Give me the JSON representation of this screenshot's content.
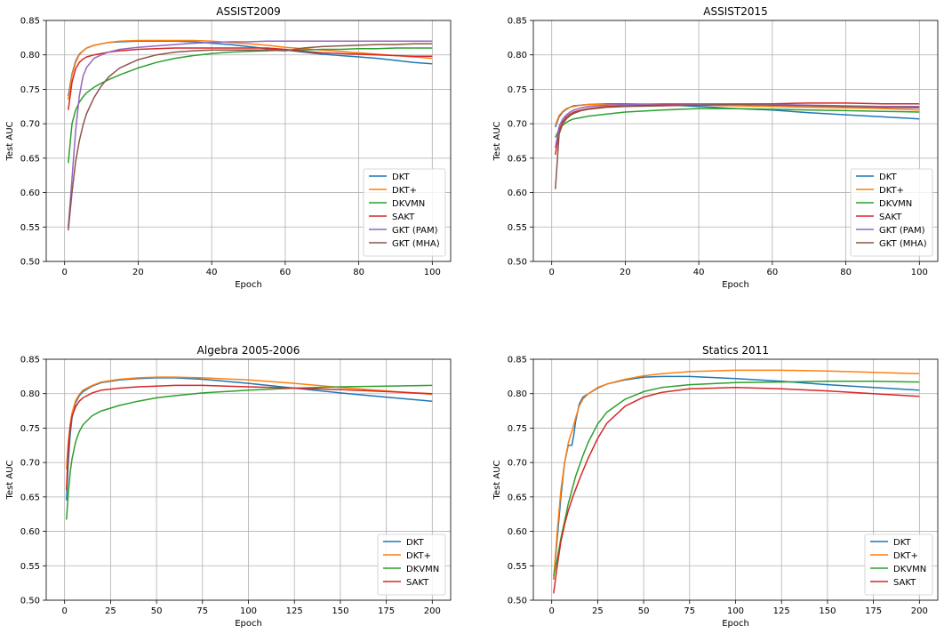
{
  "chart_data": [
    {
      "type": "line",
      "title": "ASSIST2009",
      "xlabel": "Epoch",
      "ylabel": "Test AUC",
      "xlim": [
        -5,
        105
      ],
      "ylim": [
        0.5,
        0.85
      ],
      "xticks": [
        0,
        20,
        40,
        60,
        80,
        100
      ],
      "yticks": [
        0.5,
        0.55,
        0.6,
        0.65,
        0.7,
        0.75,
        0.8,
        0.85
      ],
      "grid": true,
      "legend_position": "lower-right",
      "x": [
        1,
        2,
        3,
        4,
        5,
        6,
        8,
        10,
        12,
        15,
        20,
        25,
        30,
        35,
        40,
        45,
        50,
        55,
        60,
        65,
        70,
        75,
        80,
        85,
        90,
        95,
        100
      ],
      "series": [
        {
          "name": "DKT",
          "color": "#1f77b4",
          "values": [
            0.74,
            0.772,
            0.791,
            0.801,
            0.806,
            0.81,
            0.814,
            0.816,
            0.818,
            0.819,
            0.82,
            0.82,
            0.82,
            0.819,
            0.817,
            0.815,
            0.812,
            0.809,
            0.807,
            0.804,
            0.801,
            0.799,
            0.797,
            0.795,
            0.792,
            0.789,
            0.787
          ]
        },
        {
          "name": "DKT+",
          "color": "#ff7f0e",
          "values": [
            0.735,
            0.77,
            0.789,
            0.8,
            0.806,
            0.81,
            0.814,
            0.816,
            0.818,
            0.82,
            0.821,
            0.821,
            0.821,
            0.821,
            0.82,
            0.818,
            0.816,
            0.814,
            0.811,
            0.809,
            0.807,
            0.805,
            0.803,
            0.801,
            0.799,
            0.797,
            0.795
          ]
        },
        {
          "name": "DKVMN",
          "color": "#2ca02c",
          "values": [
            0.643,
            0.7,
            0.72,
            0.731,
            0.739,
            0.745,
            0.753,
            0.759,
            0.764,
            0.771,
            0.781,
            0.789,
            0.795,
            0.799,
            0.802,
            0.804,
            0.805,
            0.806,
            0.807,
            0.807,
            0.808,
            0.808,
            0.809,
            0.809,
            0.81,
            0.81,
            0.81
          ]
        },
        {
          "name": "SAKT",
          "color": "#d62728",
          "values": [
            0.72,
            0.76,
            0.78,
            0.789,
            0.794,
            0.797,
            0.8,
            0.802,
            0.804,
            0.806,
            0.808,
            0.809,
            0.81,
            0.81,
            0.81,
            0.81,
            0.81,
            0.81,
            0.808,
            0.805,
            0.803,
            0.802,
            0.801,
            0.8,
            0.799,
            0.798,
            0.798
          ]
        },
        {
          "name": "GKT (PAM)",
          "color": "#9467bd",
          "values": [
            0.55,
            0.62,
            0.69,
            0.74,
            0.769,
            0.782,
            0.795,
            0.8,
            0.804,
            0.808,
            0.811,
            0.813,
            0.815,
            0.817,
            0.818,
            0.819,
            0.819,
            0.82,
            0.82,
            0.82,
            0.82,
            0.82,
            0.82,
            0.82,
            0.82,
            0.82,
            0.82
          ]
        },
        {
          "name": "GKT (MHA)",
          "color": "#8c564b",
          "values": [
            0.545,
            0.6,
            0.645,
            0.675,
            0.698,
            0.715,
            0.738,
            0.755,
            0.768,
            0.781,
            0.793,
            0.8,
            0.804,
            0.806,
            0.807,
            0.807,
            0.807,
            0.807,
            0.806,
            0.81,
            0.812,
            0.813,
            0.814,
            0.815,
            0.815,
            0.816,
            0.816
          ]
        }
      ]
    },
    {
      "type": "line",
      "title": "ASSIST2015",
      "xlabel": "Epoch",
      "ylabel": "Test AUC",
      "xlim": [
        -5,
        105
      ],
      "ylim": [
        0.5,
        0.85
      ],
      "xticks": [
        0,
        20,
        40,
        60,
        80,
        100
      ],
      "yticks": [
        0.5,
        0.55,
        0.6,
        0.65,
        0.7,
        0.75,
        0.8,
        0.85
      ],
      "grid": true,
      "legend_position": "lower-right",
      "x": [
        1,
        2,
        3,
        4,
        5,
        6,
        8,
        10,
        15,
        20,
        30,
        40,
        50,
        60,
        70,
        80,
        90,
        100
      ],
      "series": [
        {
          "name": "DKT",
          "color": "#1f77b4",
          "values": [
            0.695,
            0.71,
            0.717,
            0.721,
            0.724,
            0.726,
            0.727,
            0.728,
            0.729,
            0.729,
            0.728,
            0.725,
            0.722,
            0.72,
            0.716,
            0.713,
            0.71,
            0.707
          ]
        },
        {
          "name": "DKT+",
          "color": "#ff7f0e",
          "values": [
            0.698,
            0.712,
            0.718,
            0.722,
            0.724,
            0.725,
            0.727,
            0.728,
            0.728,
            0.728,
            0.728,
            0.727,
            0.726,
            0.725,
            0.724,
            0.723,
            0.722,
            0.72
          ]
        },
        {
          "name": "DKVMN",
          "color": "#2ca02c",
          "values": [
            0.68,
            0.692,
            0.698,
            0.702,
            0.705,
            0.707,
            0.709,
            0.711,
            0.714,
            0.717,
            0.72,
            0.722,
            0.722,
            0.721,
            0.72,
            0.719,
            0.718,
            0.717
          ]
        },
        {
          "name": "SAKT",
          "color": "#d62728",
          "values": [
            0.655,
            0.69,
            0.703,
            0.71,
            0.714,
            0.717,
            0.72,
            0.722,
            0.725,
            0.726,
            0.727,
            0.728,
            0.729,
            0.729,
            0.73,
            0.73,
            0.729,
            0.729
          ]
        },
        {
          "name": "GKT (PAM)",
          "color": "#9467bd",
          "values": [
            0.665,
            0.696,
            0.707,
            0.713,
            0.717,
            0.72,
            0.723,
            0.725,
            0.727,
            0.728,
            0.729,
            0.729,
            0.729,
            0.728,
            0.727,
            0.726,
            0.725,
            0.725
          ]
        },
        {
          "name": "GKT (MHA)",
          "color": "#8c564b",
          "values": [
            0.605,
            0.685,
            0.7,
            0.707,
            0.712,
            0.715,
            0.719,
            0.721,
            0.724,
            0.725,
            0.726,
            0.727,
            0.728,
            0.727,
            0.726,
            0.725,
            0.724,
            0.723
          ]
        }
      ]
    },
    {
      "type": "line",
      "title": "Algebra 2005-2006",
      "xlabel": "Epoch",
      "ylabel": "Test AUC",
      "xlim": [
        -10,
        210
      ],
      "ylim": [
        0.5,
        0.85
      ],
      "xticks": [
        0,
        25,
        50,
        75,
        100,
        125,
        150,
        175,
        200
      ],
      "yticks": [
        0.5,
        0.55,
        0.6,
        0.65,
        0.7,
        0.75,
        0.8,
        0.85
      ],
      "grid": true,
      "legend_position": "lower-right",
      "x": [
        1,
        2,
        3,
        4,
        6,
        8,
        10,
        15,
        20,
        30,
        40,
        50,
        60,
        75,
        100,
        125,
        150,
        175,
        200
      ],
      "series": [
        {
          "name": "DKT",
          "color": "#1f77b4",
          "values": [
            0.645,
            0.7,
            0.74,
            0.765,
            0.787,
            0.797,
            0.803,
            0.811,
            0.816,
            0.82,
            0.822,
            0.823,
            0.823,
            0.821,
            0.815,
            0.808,
            0.801,
            0.795,
            0.789
          ]
        },
        {
          "name": "DKT+",
          "color": "#ff7f0e",
          "values": [
            0.69,
            0.73,
            0.755,
            0.772,
            0.79,
            0.799,
            0.805,
            0.812,
            0.817,
            0.821,
            0.823,
            0.824,
            0.824,
            0.823,
            0.82,
            0.815,
            0.809,
            0.804,
            0.799
          ]
        },
        {
          "name": "DKVMN",
          "color": "#2ca02c",
          "values": [
            0.617,
            0.655,
            0.685,
            0.705,
            0.73,
            0.745,
            0.755,
            0.768,
            0.775,
            0.783,
            0.789,
            0.794,
            0.797,
            0.801,
            0.805,
            0.808,
            0.81,
            0.811,
            0.812
          ]
        },
        {
          "name": "SAKT",
          "color": "#d62728",
          "values": [
            0.66,
            0.72,
            0.75,
            0.767,
            0.781,
            0.789,
            0.794,
            0.801,
            0.805,
            0.808,
            0.81,
            0.811,
            0.812,
            0.812,
            0.81,
            0.808,
            0.806,
            0.803,
            0.8
          ]
        }
      ]
    },
    {
      "type": "line",
      "title": "Statics 2011",
      "xlabel": "Epoch",
      "ylabel": "Test AUC",
      "xlim": [
        -10,
        210
      ],
      "ylim": [
        0.5,
        0.85
      ],
      "xticks": [
        0,
        25,
        50,
        75,
        100,
        125,
        150,
        175,
        200
      ],
      "yticks": [
        0.5,
        0.55,
        0.6,
        0.65,
        0.7,
        0.75,
        0.8,
        0.85
      ],
      "grid": true,
      "legend_position": "lower-right",
      "x": [
        1,
        3,
        5,
        7,
        9,
        10,
        11,
        12,
        13,
        15,
        17,
        20,
        25,
        30,
        40,
        50,
        60,
        75,
        100,
        125,
        150,
        175,
        200
      ],
      "series": [
        {
          "name": "DKT",
          "color": "#1f77b4",
          "values": [
            0.53,
            0.59,
            0.65,
            0.7,
            0.725,
            0.725,
            0.725,
            0.74,
            0.76,
            0.785,
            0.795,
            0.8,
            0.808,
            0.814,
            0.82,
            0.824,
            0.825,
            0.825,
            0.822,
            0.818,
            0.813,
            0.809,
            0.805
          ]
        },
        {
          "name": "DKT+",
          "color": "#ff7f0e",
          "values": [
            0.53,
            0.6,
            0.66,
            0.7,
            0.728,
            0.738,
            0.745,
            0.755,
            0.765,
            0.782,
            0.792,
            0.8,
            0.809,
            0.814,
            0.821,
            0.826,
            0.829,
            0.832,
            0.834,
            0.834,
            0.833,
            0.831,
            0.829
          ]
        },
        {
          "name": "DKVMN",
          "color": "#2ca02c",
          "values": [
            0.535,
            0.56,
            0.59,
            0.615,
            0.64,
            0.65,
            0.66,
            0.67,
            0.68,
            0.695,
            0.71,
            0.73,
            0.756,
            0.773,
            0.792,
            0.803,
            0.809,
            0.813,
            0.816,
            0.817,
            0.818,
            0.818,
            0.817
          ]
        },
        {
          "name": "SAKT",
          "color": "#d62728",
          "values": [
            0.51,
            0.55,
            0.585,
            0.61,
            0.63,
            0.638,
            0.646,
            0.654,
            0.661,
            0.675,
            0.688,
            0.707,
            0.735,
            0.757,
            0.782,
            0.795,
            0.802,
            0.807,
            0.809,
            0.807,
            0.804,
            0.8,
            0.796
          ]
        }
      ]
    }
  ]
}
